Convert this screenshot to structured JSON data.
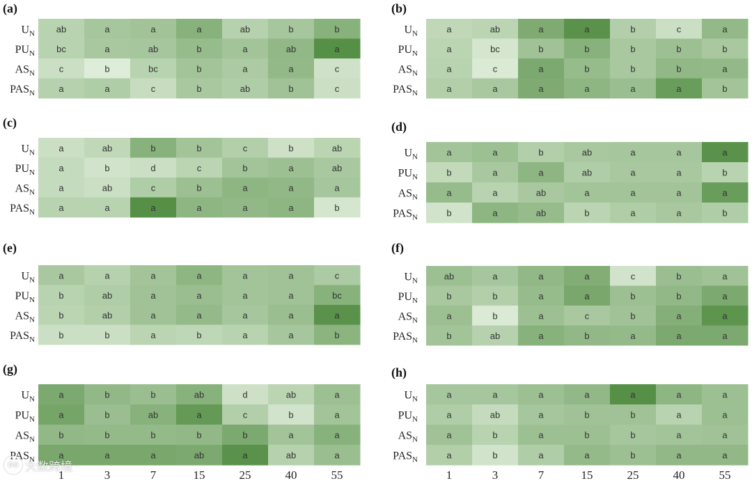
{
  "chart_data": {
    "type": "heatmap",
    "rows": [
      "U",
      "PU",
      "AS",
      "PAS"
    ],
    "row_subscript": "N",
    "x_ticks": [
      "1",
      "3",
      "7",
      "15",
      "25",
      "40",
      "55"
    ],
    "color_scale": {
      "light": "#e6f2e1",
      "dark": "#4e8a3e"
    },
    "panels": [
      {
        "id": "a",
        "letters": [
          [
            "ab",
            "a",
            "a",
            "a",
            "ab",
            "b",
            "b"
          ],
          [
            "bc",
            "a",
            "ab",
            "b",
            "a",
            "ab",
            "a"
          ],
          [
            "c",
            "b",
            "bc",
            "b",
            "a",
            "a",
            "c"
          ],
          [
            "a",
            "a",
            "c",
            "b",
            "ab",
            "b",
            "c"
          ]
        ],
        "shade": [
          [
            0.3,
            0.42,
            0.45,
            0.62,
            0.32,
            0.42,
            0.62
          ],
          [
            0.3,
            0.4,
            0.42,
            0.52,
            0.44,
            0.56,
            0.95
          ],
          [
            0.18,
            0.05,
            0.3,
            0.44,
            0.38,
            0.55,
            0.15
          ],
          [
            0.32,
            0.36,
            0.2,
            0.4,
            0.36,
            0.46,
            0.18
          ]
        ]
      },
      {
        "id": "b",
        "letters": [
          [
            "a",
            "ab",
            "a",
            "a",
            "b",
            "c",
            "a"
          ],
          [
            "a",
            "bc",
            "b",
            "b",
            "b",
            "b",
            "b"
          ],
          [
            "a",
            "c",
            "a",
            "b",
            "b",
            "b",
            "a"
          ],
          [
            "a",
            "a",
            "a",
            "a",
            "a",
            "a",
            "b"
          ]
        ],
        "shade": [
          [
            0.25,
            0.28,
            0.68,
            0.92,
            0.34,
            0.18,
            0.55
          ],
          [
            0.28,
            0.12,
            0.46,
            0.62,
            0.4,
            0.48,
            0.4
          ],
          [
            0.3,
            0.08,
            0.7,
            0.52,
            0.4,
            0.56,
            0.55
          ],
          [
            0.34,
            0.4,
            0.68,
            0.58,
            0.5,
            0.82,
            0.44
          ]
        ]
      },
      {
        "id": "c",
        "letters": [
          [
            "a",
            "ab",
            "b",
            "b",
            "c",
            "b",
            "ab"
          ],
          [
            "a",
            "b",
            "d",
            "c",
            "b",
            "a",
            "ab"
          ],
          [
            "a",
            "ab",
            "c",
            "b",
            "a",
            "a",
            "a"
          ],
          [
            "a",
            "a",
            "a",
            "a",
            "a",
            "a",
            "b"
          ]
        ],
        "shade": [
          [
            0.18,
            0.25,
            0.62,
            0.44,
            0.34,
            0.16,
            0.28
          ],
          [
            0.22,
            0.14,
            0.18,
            0.28,
            0.44,
            0.48,
            0.4
          ],
          [
            0.22,
            0.18,
            0.36,
            0.48,
            0.58,
            0.56,
            0.42
          ],
          [
            0.3,
            0.3,
            0.95,
            0.58,
            0.56,
            0.58,
            0.12
          ]
        ]
      },
      {
        "id": "d",
        "letters": [
          [
            "a",
            "a",
            "b",
            "ab",
            "a",
            "a",
            "a"
          ],
          [
            "b",
            "a",
            "a",
            "ab",
            "a",
            "a",
            "b"
          ],
          [
            "a",
            "a",
            "ab",
            "a",
            "a",
            "a",
            "a"
          ],
          [
            "b",
            "a",
            "ab",
            "b",
            "a",
            "a",
            "b"
          ]
        ],
        "shade": [
          [
            0.44,
            0.48,
            0.34,
            0.4,
            0.42,
            0.42,
            0.92
          ],
          [
            0.24,
            0.4,
            0.58,
            0.36,
            0.4,
            0.4,
            0.3
          ],
          [
            0.52,
            0.3,
            0.4,
            0.44,
            0.44,
            0.44,
            0.82
          ],
          [
            0.14,
            0.58,
            0.52,
            0.28,
            0.36,
            0.4,
            0.36
          ]
        ]
      },
      {
        "id": "e",
        "letters": [
          [
            "a",
            "a",
            "a",
            "a",
            "a",
            "a",
            "c"
          ],
          [
            "b",
            "ab",
            "a",
            "a",
            "a",
            "a",
            "bc"
          ],
          [
            "b",
            "ab",
            "a",
            "a",
            "a",
            "a",
            "a"
          ],
          [
            "b",
            "b",
            "a",
            "b",
            "a",
            "a",
            "b"
          ]
        ],
        "shade": [
          [
            0.4,
            0.32,
            0.44,
            0.58,
            0.44,
            0.46,
            0.38
          ],
          [
            0.3,
            0.36,
            0.46,
            0.5,
            0.44,
            0.46,
            0.62
          ],
          [
            0.28,
            0.34,
            0.46,
            0.54,
            0.42,
            0.5,
            0.92
          ],
          [
            0.18,
            0.18,
            0.28,
            0.26,
            0.3,
            0.42,
            0.6
          ]
        ]
      },
      {
        "id": "f",
        "letters": [
          [
            "ab",
            "a",
            "a",
            "a",
            "c",
            "b",
            "a"
          ],
          [
            "b",
            "b",
            "a",
            "a",
            "b",
            "b",
            "a"
          ],
          [
            "a",
            "b",
            "a",
            "c",
            "b",
            "a",
            "a"
          ],
          [
            "b",
            "ab",
            "a",
            "b",
            "a",
            "a",
            "a"
          ]
        ],
        "shade": [
          [
            0.48,
            0.42,
            0.56,
            0.66,
            0.14,
            0.5,
            0.46
          ],
          [
            0.4,
            0.34,
            0.52,
            0.72,
            0.48,
            0.56,
            0.7
          ],
          [
            0.48,
            0.08,
            0.48,
            0.4,
            0.46,
            0.64,
            0.9
          ],
          [
            0.44,
            0.32,
            0.62,
            0.56,
            0.54,
            0.7,
            0.7
          ]
        ]
      },
      {
        "id": "g",
        "letters": [
          [
            "a",
            "b",
            "b",
            "ab",
            "d",
            "ab",
            "a"
          ],
          [
            "a",
            "b",
            "ab",
            "a",
            "c",
            "b",
            "a"
          ],
          [
            "b",
            "b",
            "b",
            "b",
            "b",
            "a",
            "a"
          ],
          [
            "a",
            "a",
            "a",
            "ab",
            "a",
            "ab",
            "a"
          ]
        ],
        "shade": [
          [
            0.7,
            0.56,
            0.5,
            0.62,
            0.16,
            0.28,
            0.48
          ],
          [
            0.74,
            0.5,
            0.62,
            0.85,
            0.34,
            0.14,
            0.44
          ],
          [
            0.56,
            0.54,
            0.54,
            0.56,
            0.7,
            0.44,
            0.62
          ],
          [
            0.72,
            0.72,
            0.72,
            0.7,
            0.92,
            0.32,
            0.5
          ]
        ]
      },
      {
        "id": "h",
        "letters": [
          [
            "a",
            "a",
            "a",
            "a",
            "a",
            "a",
            "a"
          ],
          [
            "a",
            "ab",
            "a",
            "b",
            "b",
            "a",
            "a"
          ],
          [
            "a",
            "b",
            "a",
            "b",
            "b",
            "a",
            "a"
          ],
          [
            "a",
            "b",
            "a",
            "a",
            "b",
            "a",
            "a"
          ]
        ],
        "shade": [
          [
            0.42,
            0.42,
            0.48,
            0.56,
            0.95,
            0.58,
            0.48
          ],
          [
            0.36,
            0.22,
            0.42,
            0.46,
            0.46,
            0.3,
            0.48
          ],
          [
            0.46,
            0.3,
            0.48,
            0.48,
            0.42,
            0.44,
            0.46
          ],
          [
            0.34,
            0.14,
            0.36,
            0.54,
            0.48,
            0.56,
            0.56
          ]
        ]
      }
    ]
  },
  "watermark": {
    "logo_text": "DS",
    "text": "大数跨境"
  }
}
